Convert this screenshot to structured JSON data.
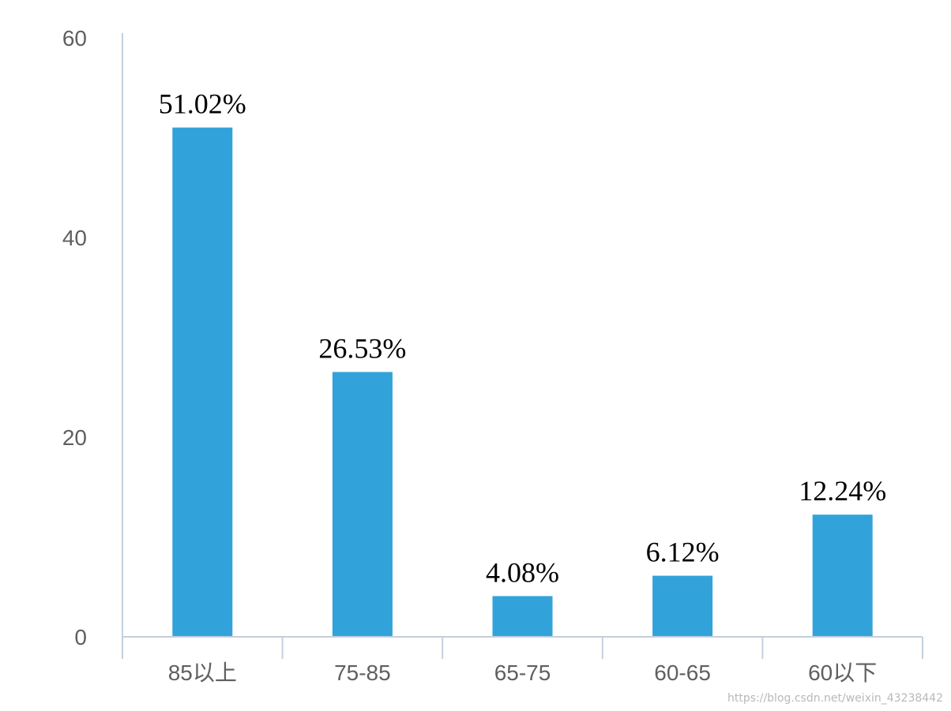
{
  "colors": {
    "bar": "#32a3da",
    "axis": "#c3d0dc",
    "tick_text": "#5f5f5f",
    "label_text": "#000000"
  },
  "chart_data": {
    "type": "bar",
    "categories": [
      "85以上",
      "75-85",
      "65-75",
      "60-65",
      "60以下"
    ],
    "values": [
      51.02,
      26.53,
      4.08,
      6.12,
      12.24
    ],
    "data_labels": [
      "51.02%",
      "26.53%",
      "4.08%",
      "6.12%",
      "12.24%"
    ],
    "ylim": [
      0,
      60
    ],
    "yticks": [
      0,
      20,
      40,
      60
    ],
    "ytick_labels": [
      "0",
      "20",
      "40",
      "60"
    ],
    "grid": false,
    "legend": false,
    "title": "",
    "xlabel": "",
    "ylabel": ""
  },
  "watermark": "https://blog.csdn.net/weixin_43238442"
}
